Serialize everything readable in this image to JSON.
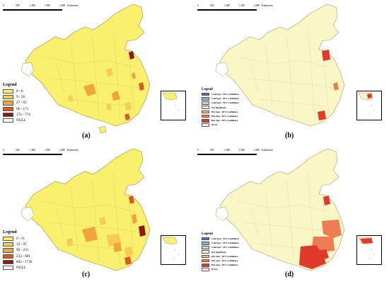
{
  "scale_bar": {
    "ticks": [
      "0",
      "500",
      "1,000",
      "1,500",
      "2,000"
    ],
    "unit": "Kilometers"
  },
  "panels": [
    {
      "label": "(a)",
      "kind": "count",
      "legend": {
        "title": "Legend",
        "items": [
          {
            "label": "0 - 8",
            "color": "#f9f06d"
          },
          {
            "label": "9 - 26",
            "color": "#f6cc55"
          },
          {
            "label": "27 - 65",
            "color": "#f0a43c"
          },
          {
            "label": "66 - 171",
            "color": "#dc5a1f"
          },
          {
            "label": "172 - 774",
            "color": "#8b1a10"
          },
          {
            "label": "NULL",
            "color": "#ffffff"
          }
        ]
      }
    },
    {
      "label": "(b)",
      "kind": "hotspot",
      "legend": {
        "title": "Legend",
        "items": [
          {
            "label": "Cold Spot - 99% Confidence",
            "color": "#4575b4"
          },
          {
            "label": "Cold Spot - 95% Confidence",
            "color": "#91aec8"
          },
          {
            "label": "Cold Spot - 90% Confidence",
            "color": "#c5d4e3"
          },
          {
            "label": "Not Significant",
            "color": "#fbf6c6"
          },
          {
            "label": "Hot Spot - 90% Confidence",
            "color": "#f4b58a"
          },
          {
            "label": "Hot Spot - 95% Confidence",
            "color": "#ee7d56"
          },
          {
            "label": "Hot Spot - 99% Confidence",
            "color": "#e03a2a"
          },
          {
            "label": "NULL",
            "color": "#ffffff"
          }
        ]
      }
    },
    {
      "label": "(c)",
      "kind": "count",
      "legend": {
        "title": "Legend",
        "items": [
          {
            "label": "0 - 31",
            "color": "#f9f06d"
          },
          {
            "label": "32 - 95",
            "color": "#f6cc55"
          },
          {
            "label": "96 - 231",
            "color": "#f0a43c"
          },
          {
            "label": "232 - 801",
            "color": "#dc5a1f"
          },
          {
            "label": "802 - 1736",
            "color": "#8b1a10"
          },
          {
            "label": "NULL",
            "color": "#ffffff"
          }
        ]
      }
    },
    {
      "label": "(d)",
      "kind": "hotspot",
      "legend": {
        "title": "Legend",
        "items": [
          {
            "label": "Cold Spot - 99% Confidence",
            "color": "#4575b4"
          },
          {
            "label": "Cold Spot - 95% Confidence",
            "color": "#91aec8"
          },
          {
            "label": "Cold Spot - 90% Confidence",
            "color": "#c5d4e3"
          },
          {
            "label": "Not Significant",
            "color": "#fbf6c6"
          },
          {
            "label": "Hot Spot - 90% Confidence",
            "color": "#f4b58a"
          },
          {
            "label": "Hot Spot - 95% Confidence",
            "color": "#ee7d56"
          },
          {
            "label": "Hot Spot - 99% Confidence",
            "color": "#e03a2a"
          },
          {
            "label": "NULL",
            "color": "#ffffff"
          }
        ]
      }
    }
  ]
}
